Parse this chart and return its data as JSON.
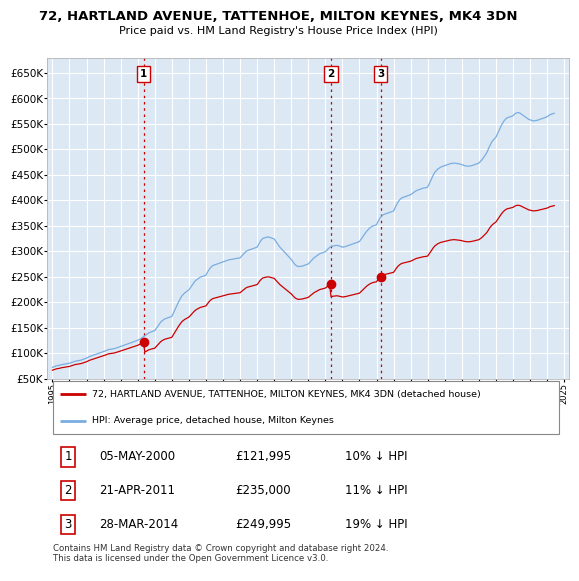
{
  "title": "72, HARTLAND AVENUE, TATTENHOE, MILTON KEYNES, MK4 3DN",
  "subtitle": "Price paid vs. HM Land Registry's House Price Index (HPI)",
  "background_color": "#ffffff",
  "plot_bg_color": "#dce9f5",
  "grid_color": "#ffffff",
  "ylim": [
    50000,
    680000
  ],
  "yticks": [
    50000,
    100000,
    150000,
    200000,
    250000,
    300000,
    350000,
    400000,
    450000,
    500000,
    550000,
    600000,
    650000
  ],
  "ytick_labels": [
    "£50K",
    "£100K",
    "£150K",
    "£200K",
    "£250K",
    "£300K",
    "£350K",
    "£400K",
    "£450K",
    "£500K",
    "£550K",
    "£600K",
    "£650K"
  ],
  "vline_color": "#cc0000",
  "legend_red_label": "72, HARTLAND AVENUE, TATTENHOE, MILTON KEYNES, MK4 3DN (detached house)",
  "legend_blue_label": "HPI: Average price, detached house, Milton Keynes",
  "table_rows": [
    [
      "1",
      "05-MAY-2000",
      "£121,995",
      "10% ↓ HPI"
    ],
    [
      "2",
      "21-APR-2011",
      "£235,000",
      "11% ↓ HPI"
    ],
    [
      "3",
      "28-MAR-2014",
      "£249,995",
      "19% ↓ HPI"
    ]
  ],
  "footnote": "Contains HM Land Registry data © Crown copyright and database right 2024.\nThis data is licensed under the Open Government Licence v3.0.",
  "red_line_color": "#cc0000",
  "blue_line_color": "#7aade0",
  "sale_years": [
    2000.35,
    2011.32,
    2014.24
  ],
  "sale_prices": [
    121995,
    235000,
    249995
  ],
  "sale_labels": [
    "1",
    "2",
    "3"
  ],
  "hpi_x": [
    1995.0,
    1995.083,
    1995.167,
    1995.25,
    1995.333,
    1995.417,
    1995.5,
    1995.583,
    1995.667,
    1995.75,
    1995.833,
    1995.917,
    1996.0,
    1996.083,
    1996.167,
    1996.25,
    1996.333,
    1996.417,
    1996.5,
    1996.583,
    1996.667,
    1996.75,
    1996.833,
    1996.917,
    1997.0,
    1997.083,
    1997.167,
    1997.25,
    1997.333,
    1997.417,
    1997.5,
    1997.583,
    1997.667,
    1997.75,
    1997.833,
    1997.917,
    1998.0,
    1998.083,
    1998.167,
    1998.25,
    1998.333,
    1998.417,
    1998.5,
    1998.583,
    1998.667,
    1998.75,
    1998.833,
    1998.917,
    1999.0,
    1999.083,
    1999.167,
    1999.25,
    1999.333,
    1999.417,
    1999.5,
    1999.583,
    1999.667,
    1999.75,
    1999.833,
    1999.917,
    2000.0,
    2000.083,
    2000.167,
    2000.25,
    2000.333,
    2000.417,
    2000.5,
    2000.583,
    2000.667,
    2000.75,
    2000.833,
    2000.917,
    2001.0,
    2001.083,
    2001.167,
    2001.25,
    2001.333,
    2001.417,
    2001.5,
    2001.583,
    2001.667,
    2001.75,
    2001.833,
    2001.917,
    2002.0,
    2002.083,
    2002.167,
    2002.25,
    2002.333,
    2002.417,
    2002.5,
    2002.583,
    2002.667,
    2002.75,
    2002.833,
    2002.917,
    2003.0,
    2003.083,
    2003.167,
    2003.25,
    2003.333,
    2003.417,
    2003.5,
    2003.583,
    2003.667,
    2003.75,
    2003.833,
    2003.917,
    2004.0,
    2004.083,
    2004.167,
    2004.25,
    2004.333,
    2004.417,
    2004.5,
    2004.583,
    2004.667,
    2004.75,
    2004.833,
    2004.917,
    2005.0,
    2005.083,
    2005.167,
    2005.25,
    2005.333,
    2005.417,
    2005.5,
    2005.583,
    2005.667,
    2005.75,
    2005.833,
    2005.917,
    2006.0,
    2006.083,
    2006.167,
    2006.25,
    2006.333,
    2006.417,
    2006.5,
    2006.583,
    2006.667,
    2006.75,
    2006.833,
    2006.917,
    2007.0,
    2007.083,
    2007.167,
    2007.25,
    2007.333,
    2007.417,
    2007.5,
    2007.583,
    2007.667,
    2007.75,
    2007.833,
    2007.917,
    2008.0,
    2008.083,
    2008.167,
    2008.25,
    2008.333,
    2008.417,
    2008.5,
    2008.583,
    2008.667,
    2008.75,
    2008.833,
    2008.917,
    2009.0,
    2009.083,
    2009.167,
    2009.25,
    2009.333,
    2009.417,
    2009.5,
    2009.583,
    2009.667,
    2009.75,
    2009.833,
    2009.917,
    2010.0,
    2010.083,
    2010.167,
    2010.25,
    2010.333,
    2010.417,
    2010.5,
    2010.583,
    2010.667,
    2010.75,
    2010.833,
    2010.917,
    2011.0,
    2011.083,
    2011.167,
    2011.25,
    2011.333,
    2011.417,
    2011.5,
    2011.583,
    2011.667,
    2011.75,
    2011.833,
    2011.917,
    2012.0,
    2012.083,
    2012.167,
    2012.25,
    2012.333,
    2012.417,
    2012.5,
    2012.583,
    2012.667,
    2012.75,
    2012.833,
    2012.917,
    2013.0,
    2013.083,
    2013.167,
    2013.25,
    2013.333,
    2013.417,
    2013.5,
    2013.583,
    2013.667,
    2013.75,
    2013.833,
    2013.917,
    2014.0,
    2014.083,
    2014.167,
    2014.25,
    2014.333,
    2014.417,
    2014.5,
    2014.583,
    2014.667,
    2014.75,
    2014.833,
    2014.917,
    2015.0,
    2015.083,
    2015.167,
    2015.25,
    2015.333,
    2015.417,
    2015.5,
    2015.583,
    2015.667,
    2015.75,
    2015.833,
    2015.917,
    2016.0,
    2016.083,
    2016.167,
    2016.25,
    2016.333,
    2016.417,
    2016.5,
    2016.583,
    2016.667,
    2016.75,
    2016.833,
    2016.917,
    2017.0,
    2017.083,
    2017.167,
    2017.25,
    2017.333,
    2017.417,
    2017.5,
    2017.583,
    2017.667,
    2017.75,
    2017.833,
    2017.917,
    2018.0,
    2018.083,
    2018.167,
    2018.25,
    2018.333,
    2018.417,
    2018.5,
    2018.583,
    2018.667,
    2018.75,
    2018.833,
    2018.917,
    2019.0,
    2019.083,
    2019.167,
    2019.25,
    2019.333,
    2019.417,
    2019.5,
    2019.583,
    2019.667,
    2019.75,
    2019.833,
    2019.917,
    2020.0,
    2020.083,
    2020.167,
    2020.25,
    2020.333,
    2020.417,
    2020.5,
    2020.583,
    2020.667,
    2020.75,
    2020.833,
    2020.917,
    2021.0,
    2021.083,
    2021.167,
    2021.25,
    2021.333,
    2021.417,
    2021.5,
    2021.583,
    2021.667,
    2021.75,
    2021.833,
    2021.917,
    2022.0,
    2022.083,
    2022.167,
    2022.25,
    2022.333,
    2022.417,
    2022.5,
    2022.583,
    2022.667,
    2022.75,
    2022.833,
    2022.917,
    2023.0,
    2023.083,
    2023.167,
    2023.25,
    2023.333,
    2023.417,
    2023.5,
    2023.583,
    2023.667,
    2023.75,
    2023.833,
    2023.917,
    2024.0,
    2024.083,
    2024.167,
    2024.25,
    2024.333,
    2024.417
  ],
  "hpi_y": [
    72000,
    73000,
    74000,
    75000,
    75500,
    76000,
    77000,
    77500,
    78000,
    78500,
    79000,
    79500,
    80000,
    81000,
    82000,
    83000,
    84000,
    84500,
    85000,
    85500,
    86000,
    87000,
    88000,
    89000,
    90000,
    91500,
    93000,
    94000,
    95000,
    96000,
    97000,
    98000,
    99000,
    100000,
    101000,
    102000,
    103000,
    104000,
    105000,
    106500,
    107000,
    107500,
    108000,
    108500,
    109000,
    110000,
    111000,
    112000,
    113000,
    114000,
    115000,
    116000,
    117000,
    118000,
    119000,
    120000,
    121000,
    122000,
    123000,
    124000,
    125000,
    126500,
    128000,
    130000,
    132000,
    134000,
    136000,
    138000,
    140000,
    141000,
    142000,
    143000,
    144000,
    148000,
    152000,
    156000,
    160000,
    163000,
    165000,
    167000,
    168000,
    169000,
    170000,
    171000,
    172000,
    178000,
    184000,
    190000,
    196000,
    202000,
    207000,
    212000,
    215000,
    218000,
    220000,
    222000,
    224000,
    228000,
    232000,
    236000,
    240000,
    243000,
    245000,
    247000,
    249000,
    250000,
    251000,
    252000,
    253000,
    258000,
    263000,
    267000,
    270000,
    272000,
    273000,
    274000,
    275000,
    276000,
    277000,
    278000,
    279000,
    280000,
    281000,
    282000,
    283000,
    283500,
    284000,
    284500,
    285000,
    285500,
    286000,
    286500,
    287000,
    290000,
    293000,
    296000,
    299000,
    301000,
    302000,
    303000,
    304000,
    305000,
    306000,
    307000,
    308000,
    313000,
    318000,
    322000,
    325000,
    326000,
    327000,
    327500,
    328000,
    327000,
    326000,
    325000,
    324000,
    320000,
    316000,
    312000,
    308000,
    305000,
    302000,
    299000,
    296000,
    293000,
    290000,
    287000,
    284000,
    280000,
    276000,
    273000,
    271000,
    270000,
    270000,
    270500,
    271000,
    272000,
    273000,
    274000,
    275000,
    278000,
    281000,
    284000,
    287000,
    289000,
    291000,
    293000,
    295000,
    296000,
    297000,
    298000,
    299000,
    302000,
    305000,
    307000,
    309000,
    310000,
    310500,
    311000,
    311500,
    311000,
    310000,
    309000,
    308000,
    308500,
    309000,
    310000,
    311000,
    312000,
    313000,
    314000,
    315000,
    316000,
    317000,
    318000,
    319000,
    323000,
    327000,
    331000,
    335000,
    339000,
    342000,
    345000,
    347000,
    349000,
    350000,
    351000,
    352000,
    358000,
    363000,
    367000,
    370000,
    372000,
    373000,
    374000,
    375000,
    376000,
    377000,
    378000,
    379000,
    385000,
    391000,
    396000,
    400000,
    403000,
    405000,
    406000,
    407000,
    408000,
    409000,
    410000,
    411000,
    413000,
    415000,
    417000,
    419000,
    420000,
    421000,
    422000,
    423000,
    424000,
    424500,
    425000,
    426000,
    432000,
    438000,
    444000,
    450000,
    455000,
    458000,
    461000,
    463000,
    465000,
    466000,
    467000,
    468000,
    469000,
    470000,
    471000,
    472000,
    472500,
    473000,
    473000,
    472500,
    472000,
    471500,
    471000,
    470000,
    469000,
    468000,
    467500,
    467000,
    467000,
    467500,
    468000,
    469000,
    470000,
    471000,
    472000,
    473000,
    476000,
    479000,
    483000,
    487000,
    491000,
    496000,
    503000,
    509000,
    514000,
    518000,
    521000,
    524000,
    530000,
    536000,
    542000,
    548000,
    553000,
    557000,
    560000,
    562000,
    563000,
    564000,
    565000,
    566000,
    569000,
    571000,
    572000,
    572000,
    571000,
    569000,
    567000,
    565000,
    563000,
    561000,
    559000,
    558000,
    557000,
    556000,
    556000,
    556500,
    557000,
    558000,
    559000,
    560000,
    561000,
    562000,
    563000,
    564000,
    566000,
    568000,
    569000,
    570000,
    571000
  ]
}
